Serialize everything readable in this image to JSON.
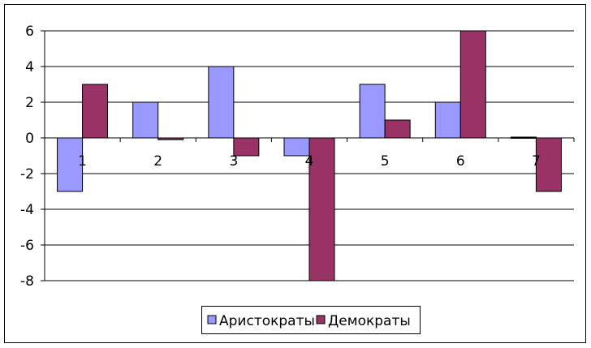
{
  "chart_data": {
    "type": "bar",
    "categories": [
      "1",
      "2",
      "3",
      "4",
      "5",
      "6",
      "7"
    ],
    "series": [
      {
        "name": "Аристократы",
        "values": [
          -3,
          2,
          4,
          -1,
          3,
          2,
          0
        ],
        "color": "#9999ff"
      },
      {
        "name": "Демократы",
        "values": [
          3,
          -0.1,
          -1,
          -8,
          1,
          6,
          -3
        ],
        "color": "#993366"
      }
    ],
    "ylim": [
      -8,
      6
    ],
    "yticks": [
      "6",
      "4",
      "2",
      "0",
      "-2",
      "-4",
      "-6",
      "-8"
    ],
    "grid": true,
    "legend": "bottom"
  }
}
